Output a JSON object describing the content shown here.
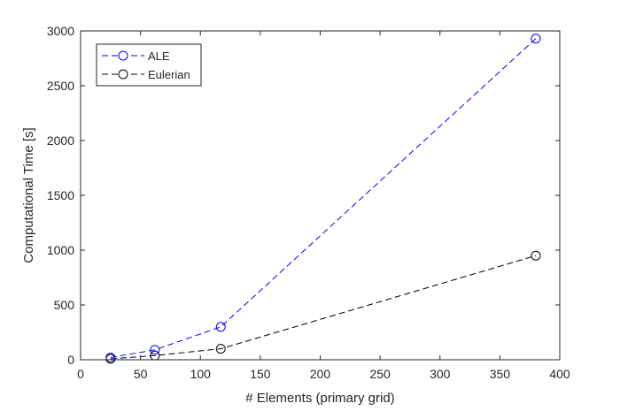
{
  "chart_data": {
    "type": "line",
    "title": "",
    "xlabel": "# Elements (primary grid)",
    "ylabel": "Computational Time [s]",
    "xlim": [
      0,
      400
    ],
    "ylim": [
      0,
      3000
    ],
    "xticks": [
      0,
      50,
      100,
      150,
      200,
      250,
      300,
      350,
      400
    ],
    "yticks": [
      0,
      500,
      1000,
      1500,
      2000,
      2500,
      3000
    ],
    "grid": false,
    "legend_position": "top-left",
    "series": [
      {
        "name": "ALE",
        "color": "#0000ff",
        "line_style": "dashed",
        "marker": "circle",
        "x": [
          25,
          62,
          117,
          380
        ],
        "y": [
          20,
          90,
          300,
          2930
        ]
      },
      {
        "name": "Eulerian",
        "color": "#000000",
        "line_style": "dashed",
        "marker": "circle",
        "x": [
          25,
          62,
          117,
          380
        ],
        "y": [
          8,
          38,
          100,
          950
        ]
      }
    ]
  }
}
